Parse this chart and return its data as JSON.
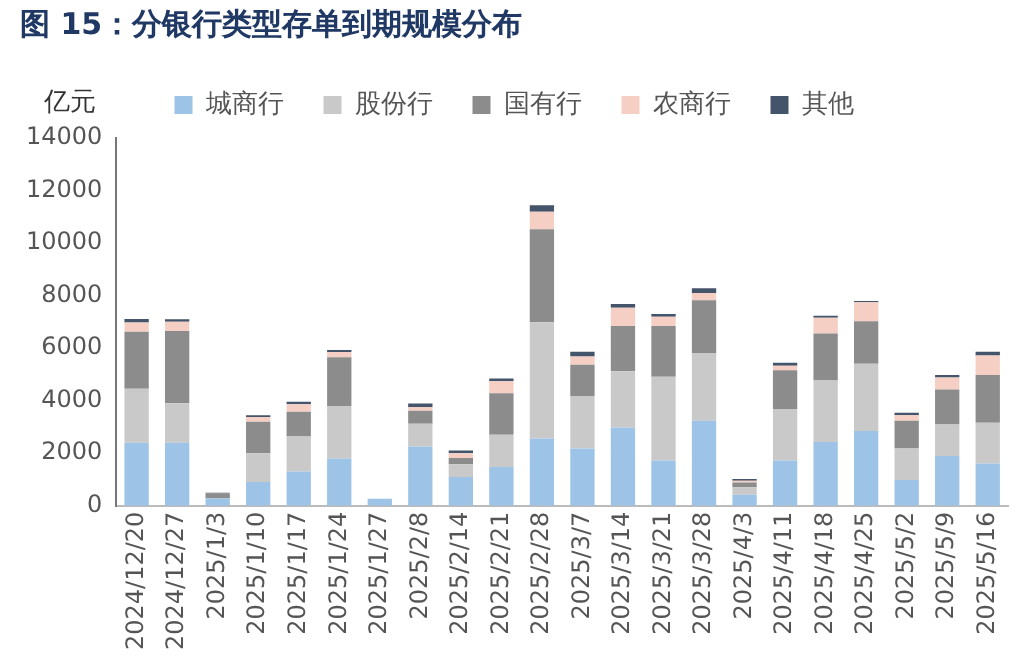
{
  "chart_data": {
    "type": "bar",
    "stacked": true,
    "title": "图 15：分银行类型存单到期规模分布",
    "ylabel": "亿元",
    "categories": [
      "2024/12/20",
      "2024/12/27",
      "2025/1/3",
      "2025/1/10",
      "2025/1/17",
      "2025/1/24",
      "2025/1/27",
      "2025/2/8",
      "2025/2/14",
      "2025/2/21",
      "2025/2/28",
      "2025/3/7",
      "2025/3/14",
      "2025/3/21",
      "2025/3/28",
      "2025/4/3",
      "2025/4/11",
      "2025/4/18",
      "2025/4/25",
      "2025/5/2",
      "2025/5/9",
      "2025/5/16"
    ],
    "series": [
      {
        "name": "城商行",
        "color": "#9dc3e6",
        "values": [
          2400,
          2400,
          280,
          900,
          1300,
          1800,
          260,
          2250,
          1090,
          1470,
          2560,
          2180,
          2980,
          1720,
          3230,
          420,
          1720,
          2420,
          2840,
          980,
          1890,
          1610
        ]
      },
      {
        "name": "股份行",
        "color": "#c9c9c9",
        "values": [
          2050,
          1500,
          null,
          1100,
          1330,
          2000,
          null,
          870,
          490,
          1230,
          4420,
          2000,
          2140,
          3190,
          2560,
          280,
          1960,
          2350,
          2560,
          1200,
          1200,
          1550
        ]
      },
      {
        "name": "国有行",
        "color": "#8c8c8c",
        "values": [
          2170,
          2750,
          180,
          1200,
          950,
          1850,
          0,
          490,
          240,
          1580,
          3550,
          1190,
          1720,
          1930,
          2030,
          180,
          1480,
          1790,
          1620,
          1050,
          1330,
          1820
        ]
      },
      {
        "name": "农商行",
        "color": "#f6cfc4",
        "values": [
          350,
          350,
          null,
          180,
          280,
          200,
          0,
          140,
          180,
          460,
          660,
          310,
          700,
          350,
          280,
          70,
          170,
          600,
          730,
          210,
          460,
          740
        ]
      },
      {
        "name": "其他",
        "color": "#44546a",
        "values": [
          140,
          100,
          30,
          60,
          100,
          80,
          0,
          140,
          100,
          100,
          250,
          180,
          140,
          110,
          180,
          70,
          110,
          70,
          40,
          100,
          100,
          140
        ]
      }
    ],
    "ylim": [
      0,
      14000
    ],
    "yticks": [
      0,
      2000,
      4000,
      6000,
      8000,
      10000,
      12000,
      14000
    ],
    "grid": false,
    "legend": "top"
  }
}
